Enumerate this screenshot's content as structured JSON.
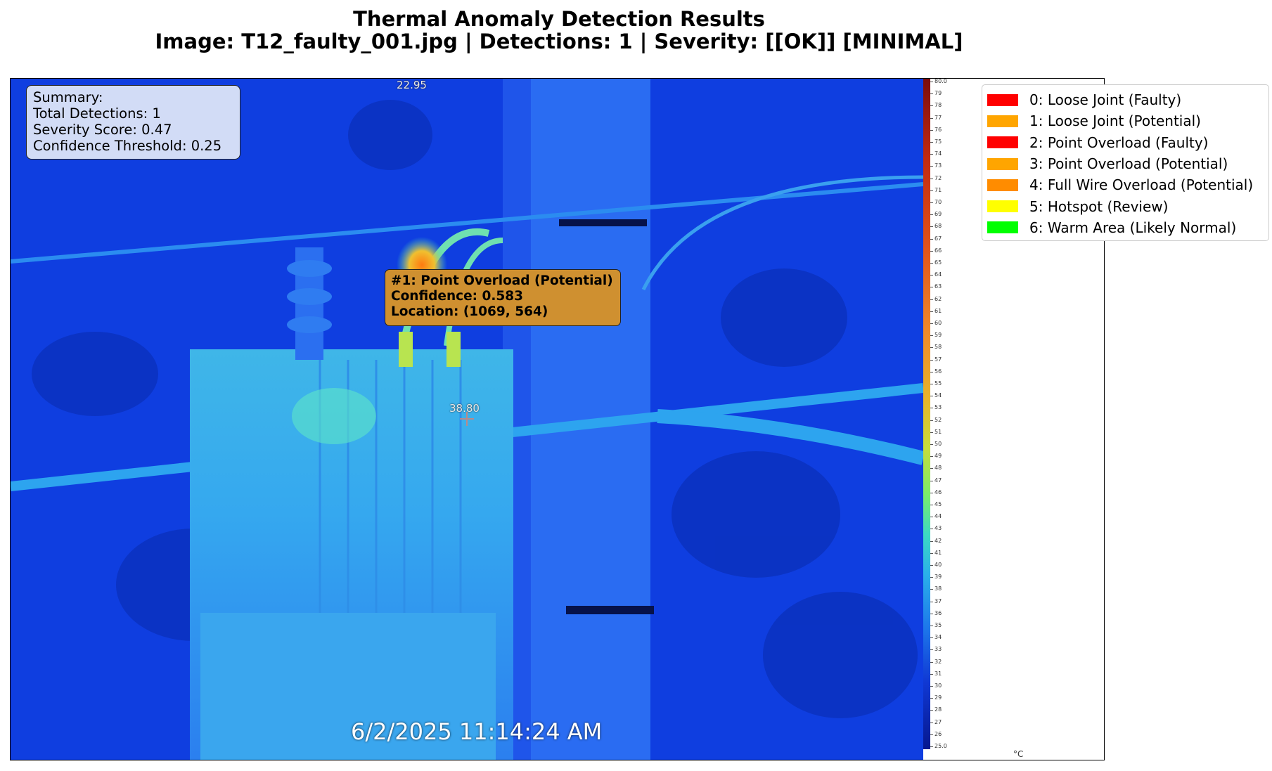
{
  "title": {
    "line1": "Thermal Anomaly Detection Results",
    "line2": "Image: T12_faulty_001.jpg | Detections: 1 | Severity: [[OK]] [MINIMAL]"
  },
  "summary": {
    "heading": "Summary:",
    "total": "Total Detections: 1",
    "severity": "Severity Score: 0.47",
    "threshold": "Confidence Threshold: 0.25"
  },
  "detection": {
    "label": "#1: Point Overload (Potential)",
    "confidence": "Confidence: 0.583",
    "location": "Location: (1069, 564)",
    "color": "#cf9030"
  },
  "overlay": {
    "max_temp": "22.95",
    "spot_temp": "38.80",
    "timestamp": "6/2/2025 11:14:24 AM",
    "unit": "°C"
  },
  "colorbar": {
    "min": "25.0",
    "max": "80.0",
    "ticks": [
      "79",
      "78",
      "77",
      "76",
      "75",
      "74",
      "73",
      "72",
      "71",
      "70",
      "69",
      "68",
      "67",
      "66",
      "65",
      "64",
      "63",
      "62",
      "61",
      "60",
      "59",
      "58",
      "57",
      "56",
      "55",
      "54",
      "53",
      "52",
      "51",
      "50",
      "49",
      "48",
      "47",
      "46",
      "45",
      "44",
      "43",
      "42",
      "41",
      "40",
      "39",
      "38",
      "37",
      "36",
      "35",
      "34",
      "33",
      "32",
      "31",
      "30",
      "29",
      "28",
      "27",
      "26"
    ]
  },
  "legend": [
    {
      "label": "0: Loose Joint (Faulty)",
      "color": "#ff0000"
    },
    {
      "label": "1: Loose Joint (Potential)",
      "color": "#ffa500"
    },
    {
      "label": "2: Point Overload (Faulty)",
      "color": "#ff0000"
    },
    {
      "label": "3: Point Overload (Potential)",
      "color": "#ffa500"
    },
    {
      "label": "4: Full Wire Overload (Potential)",
      "color": "#ff8c00"
    },
    {
      "label": "5: Hotspot (Review)",
      "color": "#ffff00"
    },
    {
      "label": "6: Warm Area (Likely Normal)",
      "color": "#00ff00"
    }
  ]
}
